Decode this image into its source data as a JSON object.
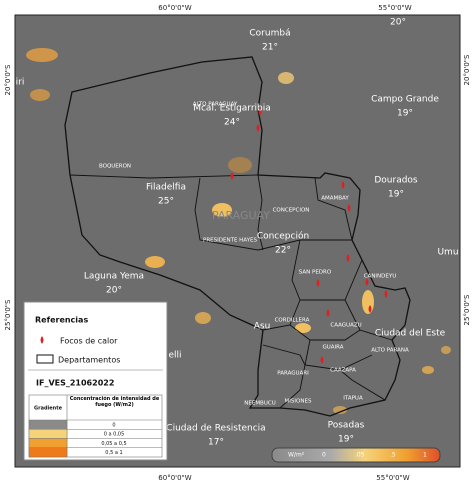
{
  "coordinates": {
    "top": [
      "60°0'0\"W",
      "55°0'0\"W"
    ],
    "bottom": [
      "60°0'0\"W",
      "55°0'0\"W"
    ],
    "left": [
      "20°0'0\"S",
      "25°0'0\"S"
    ],
    "right": [
      "20°0'0\"S",
      "25°0'0\"S"
    ]
  },
  "cities": [
    {
      "name": "Corumbá",
      "temp": "21°"
    },
    {
      "name": "",
      "temp": "20°"
    },
    {
      "name": "Mcal. Estigarribia",
      "temp": "24°"
    },
    {
      "name": "Campo Grande",
      "temp": "19°"
    },
    {
      "name": "Filadelfia",
      "temp": "25°"
    },
    {
      "name": "Dourados",
      "temp": "19°"
    },
    {
      "name": "Concepción",
      "temp": "22°"
    },
    {
      "name": "Laguna Yema",
      "temp": "20°"
    },
    {
      "name": "Ciudad de Resistencia",
      "temp": "17°"
    },
    {
      "name": "Posadas",
      "temp": "19°"
    }
  ],
  "partial_labels": [
    "iri",
    "Umu",
    "Asu",
    "Ciudad del Este",
    "elli"
  ],
  "country": "PARAGUAY",
  "departments": [
    "ALTO PARAGUAY",
    "BOQUERON",
    "PRESIDENTE HAYES",
    "CONCEPCION",
    "AMAMBAY",
    "SAN PEDRO",
    "CANINDEYU",
    "CORDILLERA",
    "CAAGUAZU",
    "ALTO PARANA",
    "GUAIRA",
    "CAAZAPA",
    "PARAGUARI",
    "MISIONES",
    "ITAPUA",
    "NEEMBUCU"
  ],
  "legend": {
    "title": "Referencias",
    "fire": "Focos de calor",
    "departments": "Departamentos",
    "layer": "IF_VES_21062022",
    "table": {
      "headers": [
        "Gradiente",
        "Concentración de intensidad de fuego (W/m2)"
      ],
      "rows": [
        "0",
        "0 a 0,05",
        "0,05 a 0,5",
        "0,5 a 1"
      ]
    }
  },
  "colorbar": {
    "unit": "W/m²",
    "labels": [
      "0",
      ".05",
      ".5",
      "1"
    ]
  }
}
